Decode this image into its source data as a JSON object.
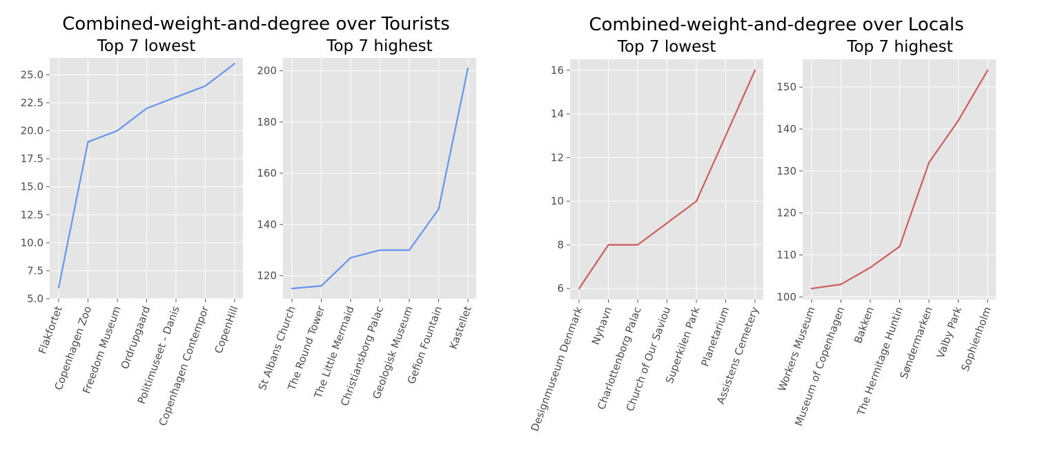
{
  "figure_titles": [
    "Combined-weight-and-degree over Tourists",
    "Combined-weight-and-degree over Locals"
  ],
  "colors": {
    "tourists_line": "#6495ed",
    "locals_line": "#cd5c5c",
    "panel_bg": "#e5e5e5",
    "grid": "#ffffff",
    "tick_text": "#4d4d4d"
  },
  "chart_data": [
    {
      "type": "line",
      "group": "Combined-weight-and-degree over Tourists",
      "title": "Top 7 lowest",
      "categories": [
        "Flakfortet",
        "Copenhagen Zoo",
        "Freedom Museum",
        "Ordrupgaard",
        "Politimuseet - Danis",
        "Copenhagen Contempor",
        "CopenHill"
      ],
      "values": [
        6,
        19,
        20,
        22,
        23,
        24,
        26
      ],
      "yticks": [
        "5.0",
        "7.5",
        "10.0",
        "12.5",
        "15.0",
        "17.5",
        "20.0",
        "22.5",
        "25.0"
      ],
      "ylim": [
        5,
        26.5
      ],
      "grid": true,
      "color": "#6495ed"
    },
    {
      "type": "line",
      "group": "Combined-weight-and-degree over Tourists",
      "title": "Top 7 highest",
      "categories": [
        "St Albans Church",
        "The Round Tower",
        "The Little Mermaid",
        "Christiansborg Palac",
        "Geologisk Museum",
        "Gefion Fountain",
        "Kastellet"
      ],
      "values": [
        115,
        116,
        127,
        130,
        130,
        146,
        201
      ],
      "yticks": [
        "120",
        "140",
        "160",
        "180",
        "200"
      ],
      "ylim": [
        111,
        205
      ],
      "grid": true,
      "color": "#6495ed"
    },
    {
      "type": "line",
      "group": "Combined-weight-and-degree over Locals",
      "title": "Top 7 lowest",
      "categories": [
        "Designmuseum Denmark",
        "Nyhavn",
        "Charlottenborg Palac",
        "Church of Our Saviou",
        "Superkilen Park",
        "Planetarium",
        "Assistens Cemetery"
      ],
      "values": [
        6,
        8,
        8,
        9,
        10,
        13,
        16
      ],
      "yticks": [
        "6",
        "8",
        "10",
        "12",
        "14",
        "16"
      ],
      "ylim": [
        5.5,
        16.5
      ],
      "grid": true,
      "color": "#cd5c5c"
    },
    {
      "type": "line",
      "group": "Combined-weight-and-degree over Locals",
      "title": "Top 7 highest",
      "categories": [
        "Workers Museum",
        "Museum of Copenhagen",
        "Bakken",
        "The Hermitage Huntin",
        "Søndermarken",
        "Valby Park",
        "Sophienholm"
      ],
      "values": [
        102,
        103,
        107,
        112,
        132,
        142,
        154
      ],
      "yticks": [
        "100",
        "110",
        "120",
        "130",
        "140",
        "150"
      ],
      "ylim": [
        99.4,
        156.6
      ],
      "grid": true,
      "color": "#cd5c5c"
    }
  ]
}
